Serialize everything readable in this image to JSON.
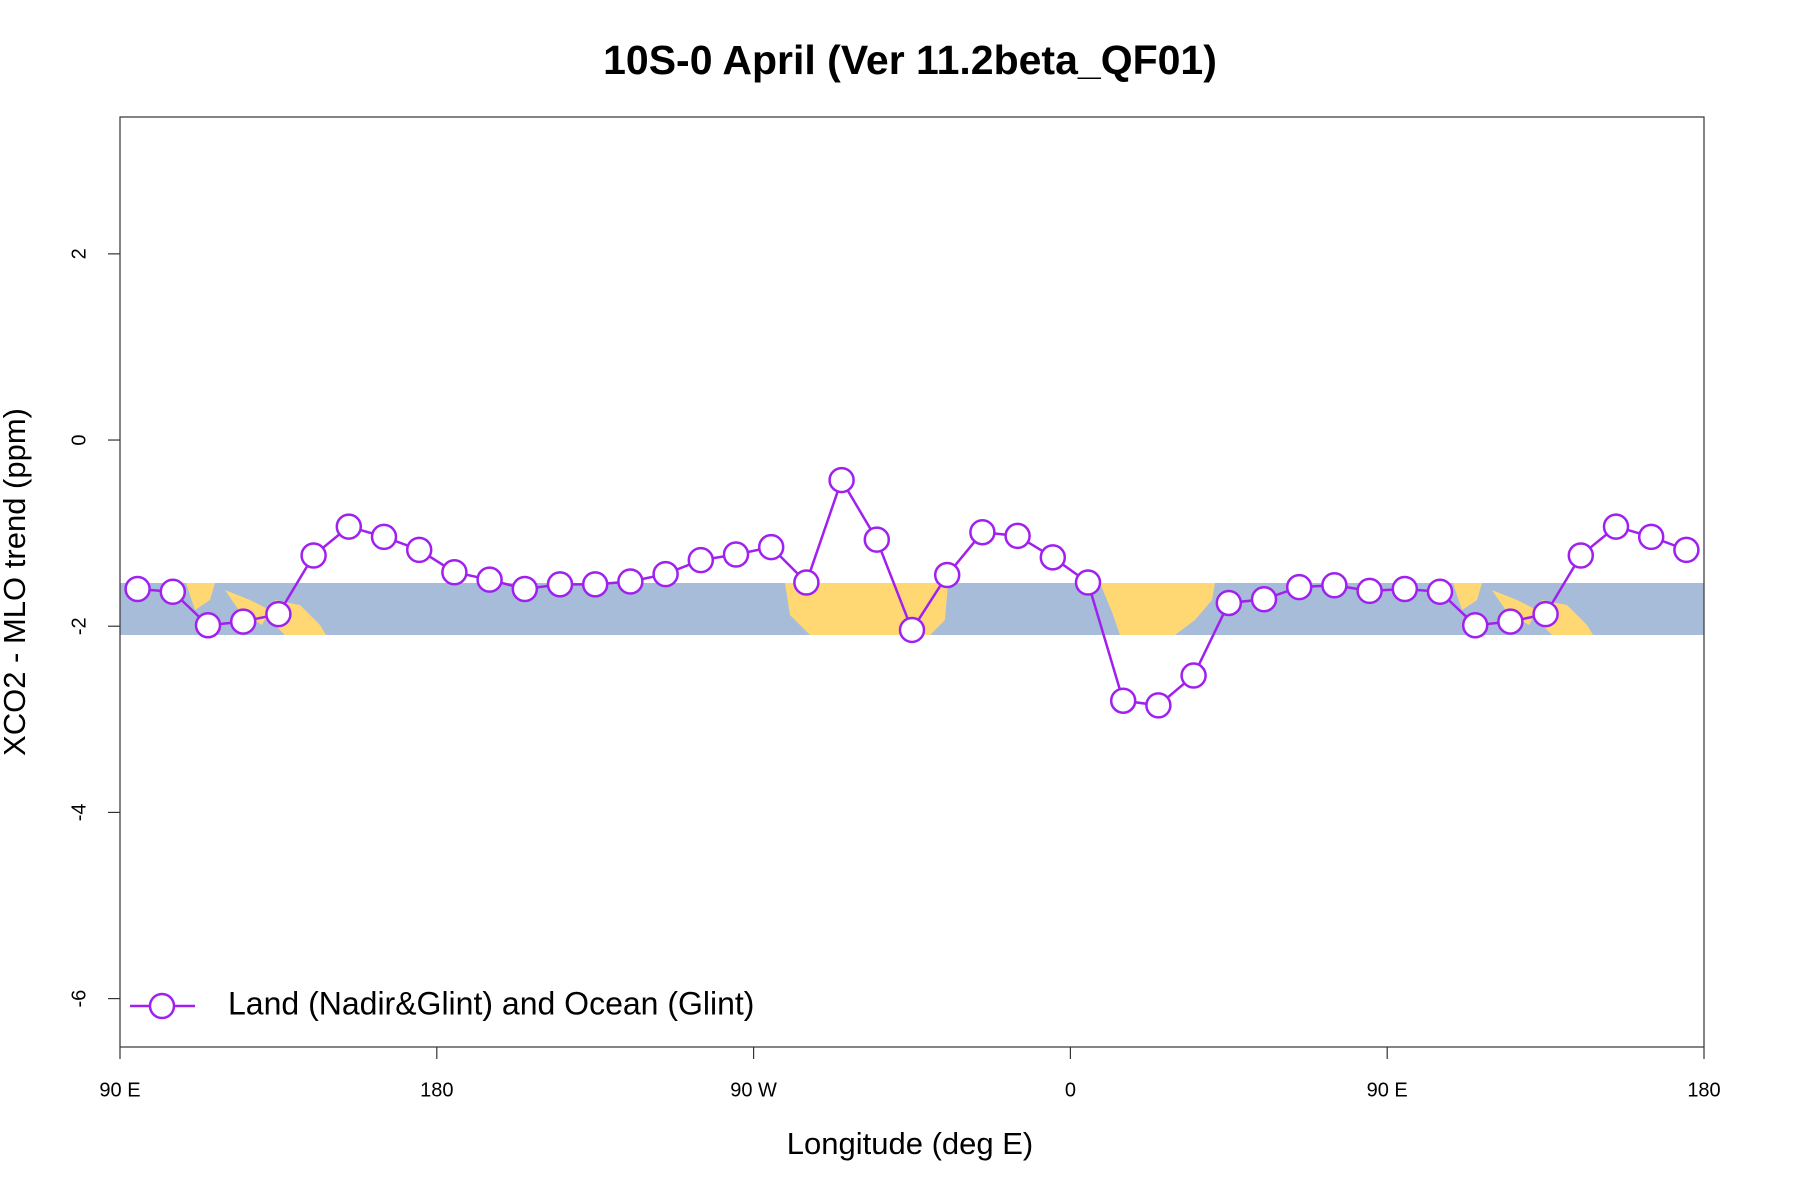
{
  "chart_data": {
    "type": "line",
    "title": "10S-0 April (Ver 11.2beta_QF01)",
    "x_label": "Longitude (deg E)",
    "y_label": "XCO2 - MLO trend (ppm)",
    "x": [
      95,
      105,
      115,
      125,
      135,
      145,
      155,
      165,
      175,
      185,
      195,
      205,
      215,
      225,
      235,
      245,
      255,
      265,
      275,
      285,
      295,
      305,
      315,
      325,
      335,
      345,
      355,
      365,
      375,
      385,
      395,
      405,
      415,
      425,
      435,
      445,
      455,
      465,
      475,
      485,
      495,
      505,
      515,
      525,
      535
    ],
    "series": [
      {
        "name": "Land (Nadir&Glint) and Ocean (Glint)",
        "color": "#a020f0",
        "values": [
          -1.6,
          -1.63,
          -1.99,
          -1.95,
          -1.87,
          -1.24,
          -0.93,
          -1.04,
          -1.18,
          -1.42,
          -1.5,
          -1.6,
          -1.55,
          -1.55,
          -1.52,
          -1.44,
          -1.29,
          -1.23,
          -1.15,
          -1.53,
          -0.43,
          -1.07,
          -2.04,
          -1.45,
          -0.99,
          -1.03,
          -1.26,
          -1.53,
          -2.8,
          -2.85,
          -2.53,
          -1.75,
          -1.71,
          -1.58,
          -1.56,
          -1.62,
          -1.6,
          -1.63,
          -1.99,
          -1.95,
          -1.87,
          -1.24,
          -0.93,
          -1.04,
          -1.18
        ]
      }
    ],
    "xlim": [
      90,
      540
    ],
    "xticks": [
      {
        "value": 90,
        "label": "90 E"
      },
      180,
      {
        "value": 270,
        "label": "90 W"
      },
      {
        "value": 360,
        "label": "0"
      },
      {
        "value": 450,
        "label": "90 E"
      },
      {
        "value": 540,
        "label": "180"
      }
    ],
    "ylim": [
      -6.52,
      3.47
    ],
    "yticks": [
      -6,
      -4,
      -2,
      0,
      2
    ],
    "grid": false,
    "legend": "bottom-left"
  }
}
